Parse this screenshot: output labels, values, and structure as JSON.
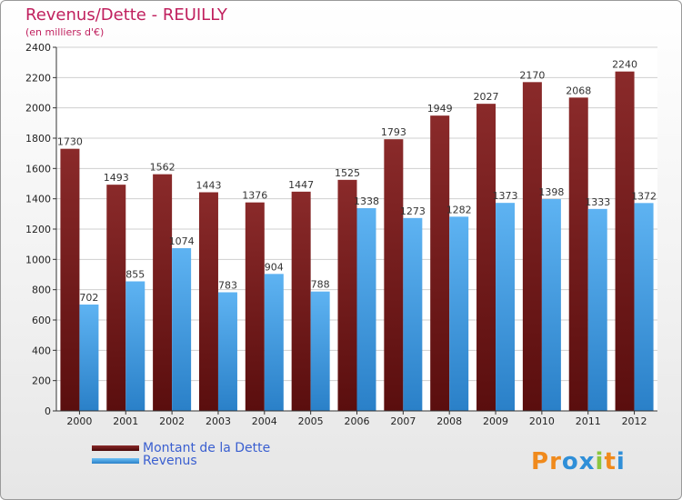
{
  "header": {
    "title": "Revenus/Dette - REUILLY",
    "subtitle": "(en milliers d'€)"
  },
  "chart_data": {
    "type": "bar",
    "categories": [
      "2000",
      "2001",
      "2002",
      "2003",
      "2004",
      "2005",
      "2006",
      "2007",
      "2008",
      "2009",
      "2010",
      "2011",
      "2012"
    ],
    "series": [
      {
        "name": "Montant de la Dette",
        "color": "#7a1e1e",
        "values": [
          1730,
          1493,
          1562,
          1443,
          1376,
          1447,
          1525,
          1793,
          1949,
          2027,
          2170,
          2068,
          2240
        ]
      },
      {
        "name": "Revenus",
        "color": "#4aa3ea",
        "values": [
          702,
          855,
          1074,
          783,
          904,
          788,
          1338,
          1273,
          1282,
          1373,
          1398,
          1333,
          1372
        ]
      }
    ],
    "ylim": [
      0,
      2400
    ],
    "yticks": [
      0,
      200,
      400,
      600,
      800,
      1000,
      1200,
      1400,
      1600,
      1800,
      2000,
      2200,
      2400
    ],
    "grid": true,
    "legend_position": "bottom-left"
  },
  "logo": {
    "text": "Proxiti",
    "letters": [
      {
        "ch": "P",
        "color": "#f08a1c"
      },
      {
        "ch": "r",
        "color": "#f08a1c"
      },
      {
        "ch": "o",
        "color": "#2f8fd8"
      },
      {
        "ch": "x",
        "color": "#2f8fd8"
      },
      {
        "ch": "i",
        "color": "#8cc63f"
      },
      {
        "ch": "t",
        "color": "#f08a1c"
      },
      {
        "ch": "i",
        "color": "#2f8fd8"
      }
    ]
  }
}
